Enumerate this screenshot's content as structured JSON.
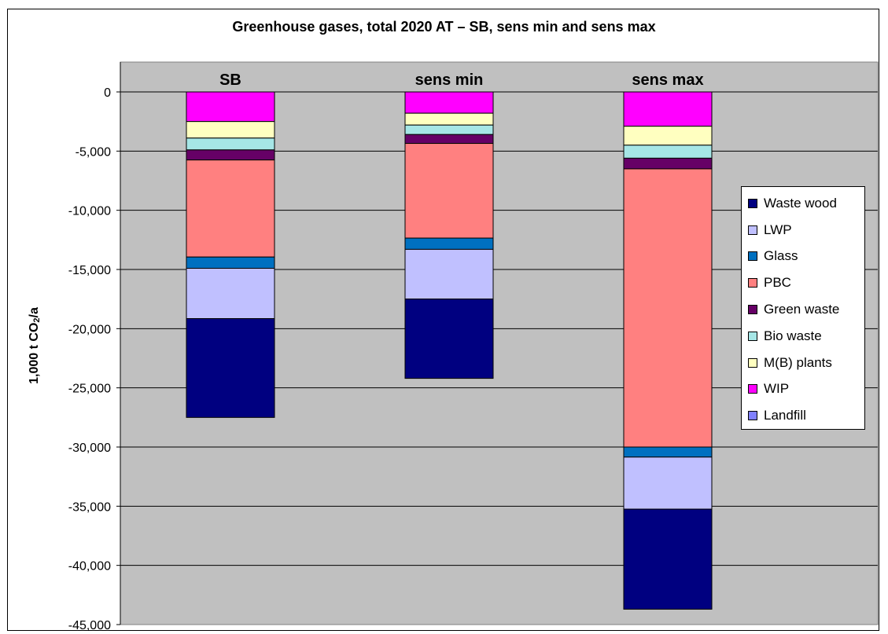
{
  "chart_data": {
    "type": "bar",
    "stacked": true,
    "title": "Greenhouse gases, total 2020 AT – SB, sens min and sens max",
    "ylabel_main": "1,000 t CO",
    "ylabel_sub": "2",
    "ylabel_tail": "/a",
    "xlabel": "",
    "ylim": [
      -45000,
      0
    ],
    "y_ticks": [
      0,
      -5000,
      -10000,
      -15000,
      -20000,
      -25000,
      -30000,
      -35000,
      -40000,
      -45000
    ],
    "y_tick_labels": [
      "0",
      "-5,000",
      "-10,000",
      "-15,000",
      "-20,000",
      "-25,000",
      "-30,000",
      "-35,000",
      "-40,000",
      "-45,000"
    ],
    "grid": true,
    "plot_background": "#c0c0c0",
    "legend_position": "right",
    "categories": [
      "SB",
      "sens min",
      "sens max"
    ],
    "series": [
      {
        "name": "WIP",
        "color": "#ff00ff",
        "values": [
          -2500,
          -1800,
          -2900
        ]
      },
      {
        "name": "M(B) plants",
        "color": "#ffffc0",
        "values": [
          -1400,
          -1000,
          -1600
        ]
      },
      {
        "name": "Bio waste",
        "color": "#a6e6e6",
        "values": [
          -1000,
          -800,
          -1100
        ]
      },
      {
        "name": "Green waste",
        "color": "#660066",
        "values": [
          -850,
          -750,
          -900
        ]
      },
      {
        "name": "PBC",
        "color": "#ff8080",
        "values": [
          -8200,
          -8000,
          -23500
        ]
      },
      {
        "name": "Glass",
        "color": "#0070c0",
        "values": [
          -950,
          -950,
          -850
        ]
      },
      {
        "name": "LWP",
        "color": "#c0c0ff",
        "values": [
          -4250,
          -4200,
          -4400
        ]
      },
      {
        "name": "Waste wood",
        "color": "#000080",
        "values": [
          -8350,
          -6700,
          -8450
        ]
      },
      {
        "name": "Landfill",
        "color": "#8080ff",
        "values": [
          0,
          0,
          0
        ]
      }
    ],
    "legend_order": [
      "Waste wood",
      "LWP",
      "Glass",
      "PBC",
      "Green waste",
      "Bio waste",
      "M(B) plants",
      "WIP",
      "Landfill"
    ]
  }
}
